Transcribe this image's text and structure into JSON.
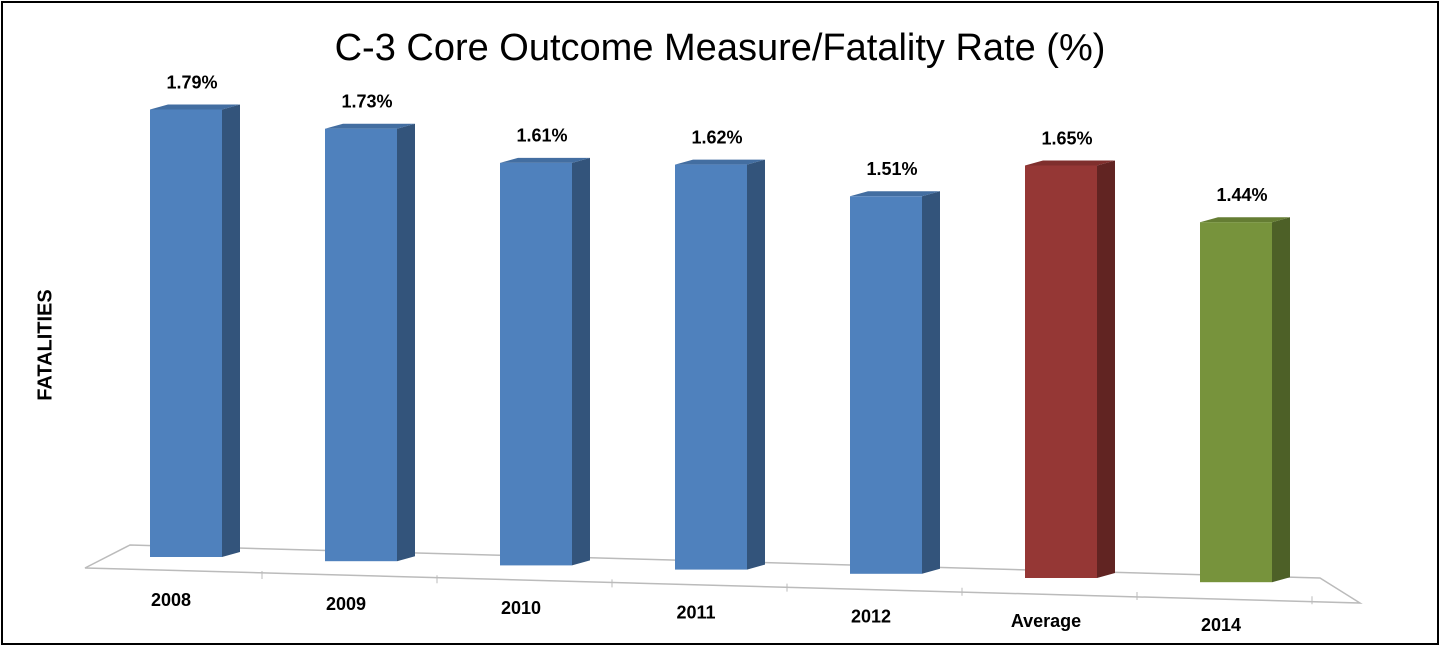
{
  "chart_data": {
    "type": "bar3d",
    "title": "C-3 Core Outcome Measure/Fatality Rate (%)",
    "y_label": "FATALITIES",
    "categories": [
      "2008",
      "2009",
      "2010",
      "2011",
      "2012",
      "Average",
      "2014"
    ],
    "values": [
      1.79,
      1.73,
      1.61,
      1.62,
      1.51,
      1.65,
      1.44
    ],
    "value_labels": [
      "1.79%",
      "1.73%",
      "1.61%",
      "1.62%",
      "1.51%",
      "1.65%",
      "1.44%"
    ],
    "colors": [
      "#4f81bd",
      "#4f81bd",
      "#4f81bd",
      "#4f81bd",
      "#4f81bd",
      "#953735",
      "#77933c"
    ]
  }
}
